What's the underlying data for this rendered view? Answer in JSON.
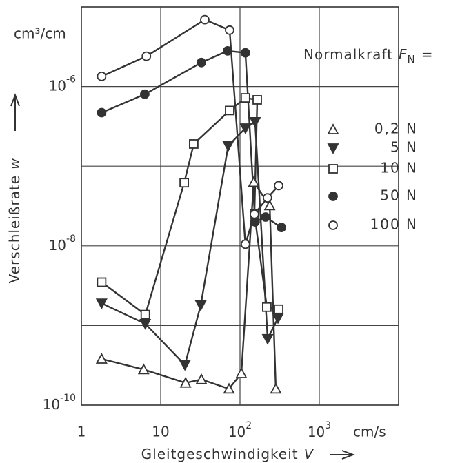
{
  "chart_data": {
    "type": "line",
    "xscale": "log",
    "yscale": "log",
    "xlim": [
      1,
      10000
    ],
    "ylim": [
      1e-10,
      1e-05
    ],
    "xticks": [
      1,
      10,
      {
        "value": 100,
        "label": "10",
        "sup": "2"
      },
      {
        "value": 1000,
        "label": "10",
        "sup": "3"
      }
    ],
    "x_unit": "cm/s",
    "yticks": [
      {
        "value": 1e-10,
        "label": "10",
        "sup": "-10"
      },
      {
        "value": 1e-09,
        "label": null
      },
      {
        "value": 1e-08,
        "label": "10",
        "sup": "-8"
      },
      {
        "value": 1e-07,
        "label": null
      },
      {
        "value": 1e-06,
        "label": "10",
        "sup": "-6"
      }
    ],
    "y_unit": "cm³/cm",
    "x_label": "Gleitgeschwindigkeit",
    "x_label_symbol": "V",
    "y_label": "Verschleißrate",
    "y_label_symbol": "w",
    "legend_title": "Normalkraft",
    "legend_symbol": "F",
    "legend_symbol_sub": "N",
    "legend_title_suffix": "=",
    "grid": true,
    "legend": "right",
    "series": [
      {
        "name": "0,2 N",
        "marker": "triangle-up-open",
        "color": "#333333",
        "x": [
          1.8,
          6.1,
          20.6,
          32.6,
          72.6,
          104,
          149,
          237,
          283
        ],
        "values": [
          3.8e-10,
          2.8e-10,
          1.9e-10,
          2.1e-10,
          1.6e-10,
          2.5e-10,
          6.3e-08,
          3.2e-08,
          1.6e-10
        ]
      },
      {
        "name": "5 N",
        "marker": "triangle-down-filled",
        "color": "#333333",
        "x": [
          1.8,
          6.4,
          20.2,
          32,
          71,
          117,
          155,
          223,
          301
        ],
        "values": [
          1.9e-09,
          1.05e-09,
          3.2e-10,
          1.8e-09,
          1.8e-07,
          3e-07,
          3.6e-07,
          6.8e-10,
          1.24e-09
        ]
      },
      {
        "name": "10 N",
        "marker": "square-open",
        "color": "#333333",
        "x": [
          1.8,
          6.4,
          19.8,
          26.1,
          74,
          117,
          165,
          152,
          218,
          307
        ],
        "values": [
          3.5e-09,
          1.37e-09,
          6.2e-08,
          1.9e-07,
          5e-07,
          7.2e-07,
          6.8e-07,
          2.5e-08,
          1.7e-09,
          1.6e-09
        ]
      },
      {
        "name": "50 N",
        "marker": "circle-filled",
        "color": "#333333",
        "x": [
          1.8,
          6.3,
          32.6,
          69.7,
          117,
          155,
          210,
          333
        ],
        "values": [
          4.7e-07,
          8e-07,
          2e-06,
          2.8e-06,
          2.65e-06,
          2e-08,
          2.3e-08,
          1.7e-08
        ]
      },
      {
        "name": "100 N",
        "marker": "circle-open",
        "color": "#333333",
        "x": [
          1.8,
          6.6,
          36,
          74,
          117,
          152,
          222,
          307
        ],
        "values": [
          1.34e-06,
          2.4e-06,
          6.9e-06,
          5.1e-06,
          1.05e-08,
          2.5e-08,
          4e-08,
          5.7e-08
        ]
      }
    ]
  }
}
